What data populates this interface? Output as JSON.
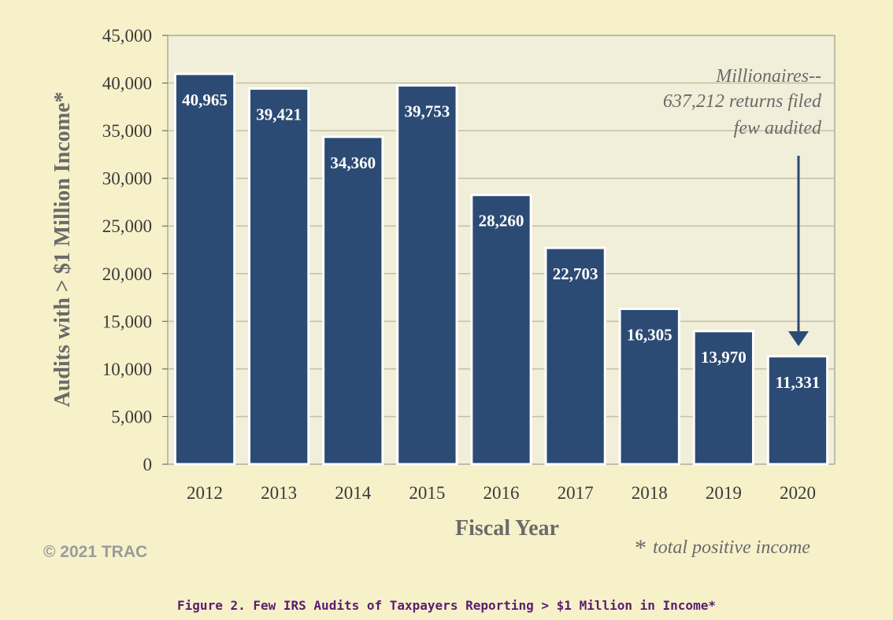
{
  "chart_data": {
    "type": "bar",
    "categories": [
      "2012",
      "2013",
      "2014",
      "2015",
      "2016",
      "2017",
      "2018",
      "2019",
      "2020"
    ],
    "values": [
      40965,
      39421,
      34360,
      39753,
      28260,
      22703,
      16305,
      13970,
      11331
    ],
    "value_labels": [
      "40,965",
      "39,421",
      "34,360",
      "39,753",
      "28,260",
      "22,703",
      "16,305",
      "13,970",
      "11,331"
    ],
    "xlabel": "Fiscal Year",
    "ylabel": "Audits with > $1 Million Income*",
    "ylim": [
      0,
      45000
    ],
    "yticks": [
      0,
      5000,
      10000,
      15000,
      20000,
      25000,
      30000,
      35000,
      40000,
      45000
    ],
    "ytick_labels": [
      "0",
      "5,000",
      "10,000",
      "15,000",
      "20,000",
      "25,000",
      "30,000",
      "35,000",
      "40,000",
      "45,000"
    ],
    "grid": true,
    "annotation": {
      "lines": [
        "Millionaires--",
        "637,212 returns filed",
        "few  audited"
      ],
      "target_category": "2020"
    },
    "colors": {
      "bar": "#2c4b74",
      "bar_outline": "#ffffff",
      "plot_bg": "#f1eed9",
      "page_bg": "#f6f1c9",
      "grid": "#c4c0a4"
    }
  },
  "footnote": {
    "marker": "*",
    "text": "total positive income"
  },
  "copyright": "© 2021 TRAC",
  "caption": "Figure 2. Few IRS Audits of Taxpayers Reporting > $1 Million in Income*"
}
